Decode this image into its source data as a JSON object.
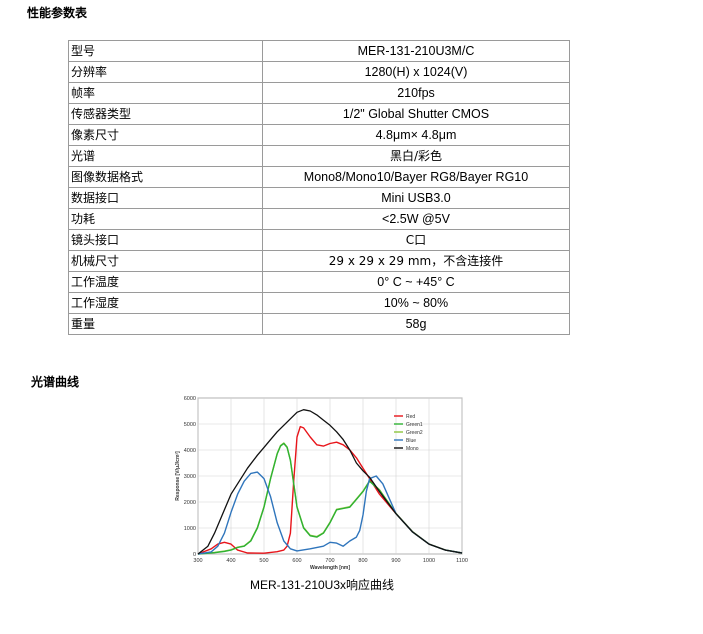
{
  "sections": {
    "specs_title": "性能参数表",
    "curve_title": "光谱曲线"
  },
  "specs": [
    {
      "k": "型号",
      "v": "MER-131-210U3M/C"
    },
    {
      "k": "分辨率",
      "v": "1280(H) x 1024(V)"
    },
    {
      "k": "帧率",
      "v": "210fps"
    },
    {
      "k": "传感器类型",
      "v": "1/2\" Global Shutter CMOS"
    },
    {
      "k": "像素尺寸",
      "v": "4.8μm× 4.8μm"
    },
    {
      "k": "光谱",
      "v": "黑白/彩色"
    },
    {
      "k": "图像数据格式",
      "v": "Mono8/Mono10/Bayer RG8/Bayer RG10"
    },
    {
      "k": "数据接口",
      "v": "Mini USB3.0"
    },
    {
      "k": "功耗",
      "v": "<2.5W @5V"
    },
    {
      "k": "镜头接口",
      "v": "C口"
    },
    {
      "k": "机械尺寸",
      "v": "29 x 29 x 29 mm，不含连接件"
    },
    {
      "k": "工作温度",
      "v": "0° C ~ +45° C"
    },
    {
      "k": "工作湿度",
      "v": "10% ~ 80%"
    },
    {
      "k": "重量",
      "v": "58g"
    }
  ],
  "caption": "MER-131-210U3x响应曲线",
  "chart_data": {
    "type": "line",
    "xlabel": "Wavelength [nm]",
    "ylabel": "Response [V/μJ/cm²]",
    "xlim": [
      300,
      1100
    ],
    "ylim": [
      0,
      6000
    ],
    "xticks": [
      300,
      400,
      500,
      600,
      700,
      800,
      900,
      1000,
      1100
    ],
    "yticks": [
      0,
      1000,
      2000,
      3000,
      4000,
      5000,
      6000
    ],
    "grid": true,
    "legend_position": "top-right",
    "series": [
      {
        "name": "Red",
        "color": "#e8141a",
        "x": [
          300,
          340,
          360,
          380,
          400,
          420,
          450,
          500,
          540,
          560,
          570,
          580,
          590,
          600,
          610,
          620,
          640,
          660,
          680,
          700,
          720,
          740,
          760,
          780,
          800,
          820,
          850,
          900,
          950,
          1000,
          1050,
          1100
        ],
        "y": [
          0,
          200,
          380,
          450,
          380,
          150,
          40,
          30,
          90,
          150,
          300,
          800,
          2800,
          4500,
          4900,
          4850,
          4500,
          4200,
          4150,
          4250,
          4300,
          4200,
          4000,
          3700,
          3300,
          2900,
          2300,
          1550,
          850,
          380,
          150,
          40
        ]
      },
      {
        "name": "Green1",
        "color": "#2fb232",
        "x": [
          300,
          350,
          380,
          400,
          420,
          440,
          460,
          480,
          500,
          520,
          540,
          550,
          560,
          570,
          580,
          590,
          600,
          620,
          640,
          660,
          680,
          700,
          720,
          740,
          760,
          780,
          800,
          820,
          850,
          900,
          950,
          1000,
          1050,
          1100
        ],
        "y": [
          0,
          50,
          100,
          150,
          250,
          300,
          500,
          1000,
          1800,
          2900,
          3850,
          4150,
          4250,
          4100,
          3600,
          2700,
          1800,
          1000,
          700,
          650,
          800,
          1200,
          1700,
          1750,
          1800,
          2100,
          2400,
          2800,
          2450,
          1550,
          850,
          380,
          150,
          40
        ]
      },
      {
        "name": "Green2",
        "color": "#8dc63f",
        "x": [
          300,
          350,
          380,
          400,
          420,
          440,
          460,
          480,
          500,
          520,
          540,
          550,
          560,
          570,
          580,
          590,
          600,
          620,
          640,
          660,
          680,
          700,
          720,
          740,
          760,
          780,
          800,
          820,
          850,
          900,
          950,
          1000,
          1050,
          1100
        ],
        "y": [
          0,
          60,
          110,
          160,
          260,
          310,
          520,
          1020,
          1820,
          2920,
          3870,
          4170,
          4270,
          4120,
          3620,
          2720,
          1820,
          1020,
          720,
          670,
          820,
          1220,
          1720,
          1770,
          1820,
          2120,
          2420,
          2820,
          2470,
          1560,
          860,
          385,
          152,
          40
        ]
      },
      {
        "name": "Blue",
        "color": "#2f75bc",
        "x": [
          300,
          340,
          360,
          380,
          400,
          420,
          440,
          460,
          480,
          500,
          520,
          540,
          560,
          580,
          600,
          640,
          680,
          700,
          720,
          740,
          760,
          780,
          790,
          800,
          810,
          820,
          840,
          860,
          900,
          950,
          1000,
          1050,
          1100
        ],
        "y": [
          0,
          80,
          300,
          800,
          1600,
          2300,
          2800,
          3100,
          3150,
          2900,
          2200,
          1200,
          500,
          200,
          120,
          200,
          300,
          450,
          420,
          300,
          500,
          650,
          900,
          1500,
          2400,
          2900,
          3000,
          2700,
          1550,
          850,
          380,
          150,
          40
        ]
      },
      {
        "name": "Mono",
        "color": "#111111",
        "x": [
          300,
          330,
          350,
          370,
          400,
          420,
          450,
          480,
          500,
          520,
          540,
          560,
          580,
          600,
          620,
          640,
          660,
          680,
          700,
          720,
          740,
          760,
          780,
          800,
          820,
          850,
          900,
          950,
          1000,
          1050,
          1100
        ],
        "y": [
          0,
          300,
          800,
          1400,
          2300,
          2700,
          3300,
          3800,
          4100,
          4400,
          4700,
          4950,
          5200,
          5450,
          5550,
          5500,
          5350,
          5150,
          4950,
          4700,
          4400,
          4000,
          3500,
          3200,
          2950,
          2400,
          1550,
          850,
          380,
          150,
          40
        ]
      }
    ]
  }
}
